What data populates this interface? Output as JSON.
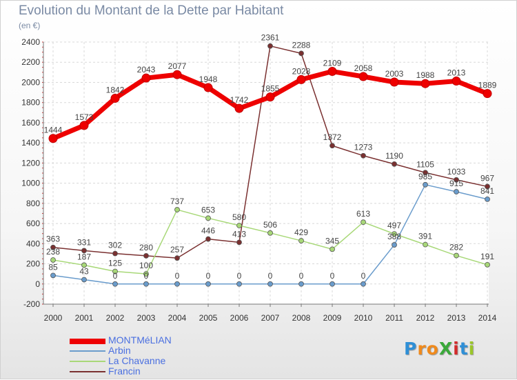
{
  "header": {
    "title": "Evolution du Montant de la Dette par Habitant",
    "subtitle": "(en €)"
  },
  "brand": {
    "text": "ProXiti",
    "letters": [
      "P",
      "r",
      "o",
      "X",
      "i",
      "t",
      "i"
    ],
    "letter_colors": [
      "#2f8fd6",
      "#f08a1c",
      "#f08a1c",
      "#3aa83a",
      "#d22c2c",
      "#2f8fd6",
      "#9bc62a"
    ]
  },
  "chart_data": {
    "type": "line",
    "title": "Evolution du Montant de la Dette par Habitant",
    "subtitle": "(en €)",
    "xlabel": "",
    "ylabel": "",
    "x": [
      "2000",
      "2001",
      "2002",
      "2003",
      "2004",
      "2005",
      "2006",
      "2007",
      "2008",
      "2009",
      "2010",
      "2011",
      "2012",
      "2013",
      "2014"
    ],
    "ylim": [
      -200,
      2400
    ],
    "y_ticks": [
      -200,
      0,
      200,
      400,
      600,
      800,
      1000,
      1200,
      1400,
      1600,
      1800,
      2000,
      2200,
      2400
    ],
    "grid": true,
    "legend_position": "bottom-left",
    "series": [
      {
        "name": "MONTMéLIAN",
        "color": "#ee0000",
        "values": [
          1444,
          1573,
          1842,
          2043,
          2077,
          1948,
          1742,
          1855,
          2028,
          2109,
          2058,
          2003,
          1988,
          2013,
          1889
        ],
        "labels": [
          "1444",
          "1573",
          "1842",
          "2043",
          "2077",
          "1948",
          "1742",
          "1855",
          "2028",
          "2109",
          "2058",
          "2003",
          "1988",
          "2013",
          "1889"
        ]
      },
      {
        "name": "Arbin",
        "color": "#6a9ccc",
        "values": [
          85,
          43,
          0,
          0,
          0,
          0,
          0,
          0,
          0,
          0,
          0,
          388,
          985,
          915,
          841
        ],
        "labels": [
          "85",
          "43",
          "0",
          "0",
          "0",
          "0",
          "0",
          "0",
          "0",
          "0",
          "0",
          "388",
          "985",
          "915",
          "841"
        ]
      },
      {
        "name": "La Chavanne",
        "color": "#a8d878",
        "values": [
          238,
          187,
          125,
          100,
          737,
          653,
          580,
          506,
          429,
          345,
          613,
          497,
          391,
          282,
          191
        ],
        "labels": [
          "238",
          "187",
          "125",
          "100",
          "737",
          "653",
          "580",
          "506",
          "429",
          "345",
          "613",
          "497",
          "391",
          "282",
          "191"
        ]
      },
      {
        "name": "Francin",
        "color": "#7a3030",
        "values": [
          363,
          331,
          302,
          280,
          257,
          446,
          413,
          2361,
          2288,
          1372,
          1273,
          1190,
          1105,
          1033,
          967
        ],
        "labels": [
          "363",
          "331",
          "302",
          "280",
          "257",
          "446",
          "413",
          "2361",
          "2288",
          "1372",
          "1273",
          "1190",
          "1105",
          "1033",
          "967"
        ]
      }
    ]
  }
}
